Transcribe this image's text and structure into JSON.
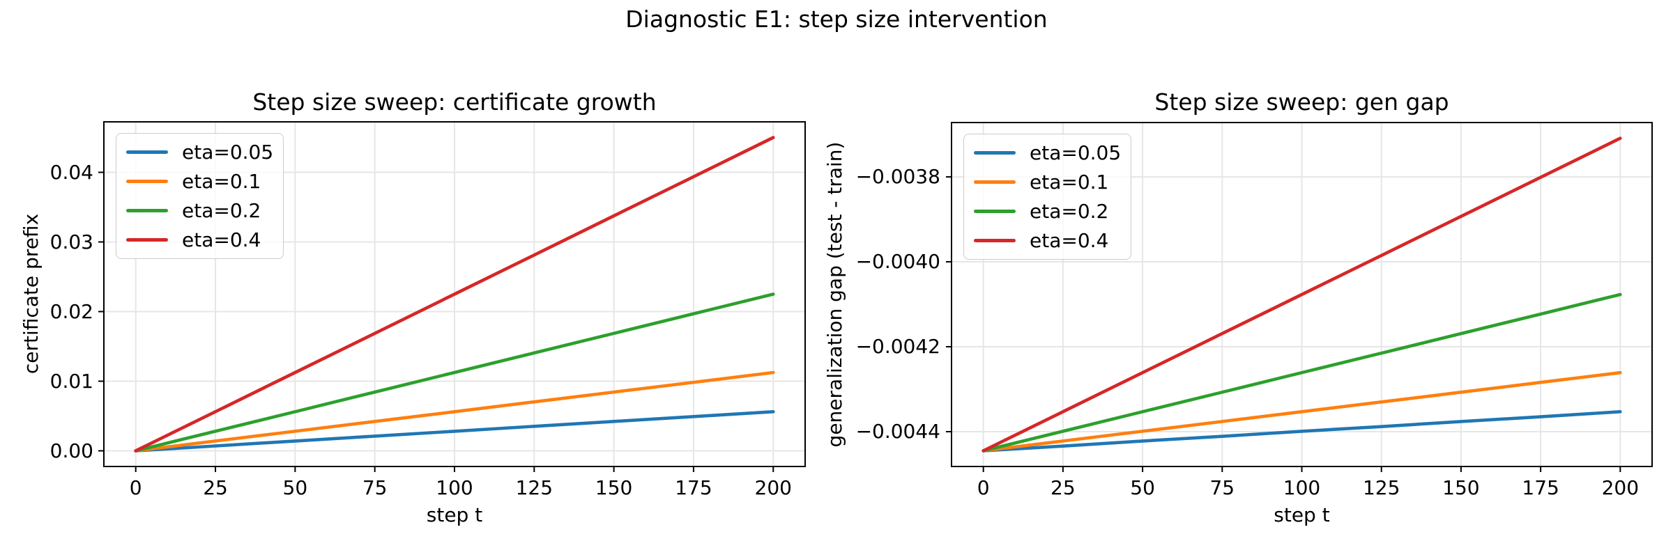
{
  "figure": {
    "suptitle": "Diagnostic E1: step size intervention",
    "background_color": "#ffffff",
    "text_color": "#000000",
    "grid_color": "#e6e6e6",
    "spine_color": "#000000"
  },
  "chart_data": [
    {
      "type": "line",
      "title": "Step size sweep: certificate growth",
      "xlabel": "step t",
      "ylabel": "certificate prefix",
      "grid": true,
      "legend_position": "upper left",
      "xlim": [
        -10,
        210
      ],
      "ylim": [
        -0.00225,
        0.04725
      ],
      "xticks": [
        0,
        25,
        50,
        75,
        100,
        125,
        150,
        175,
        200
      ],
      "xtick_labels": [
        "0",
        "25",
        "50",
        "75",
        "100",
        "125",
        "150",
        "175",
        "200"
      ],
      "yticks": [
        0.0,
        0.01,
        0.02,
        0.03,
        0.04
      ],
      "ytick_labels": [
        "0.00",
        "0.01",
        "0.02",
        "0.03",
        "0.04"
      ],
      "x": [
        0,
        25,
        50,
        75,
        100,
        125,
        150,
        175,
        200
      ],
      "series": [
        {
          "name": "eta=0.05",
          "color": "#1f77b4",
          "values": [
            0.0,
            0.000703,
            0.001406,
            0.002109,
            0.002813,
            0.003516,
            0.004219,
            0.004922,
            0.005625
          ]
        },
        {
          "name": "eta=0.1",
          "color": "#ff7f0e",
          "values": [
            0.0,
            0.001406,
            0.002813,
            0.004219,
            0.005625,
            0.007031,
            0.008438,
            0.009844,
            0.01125
          ]
        },
        {
          "name": "eta=0.2",
          "color": "#2ca02c",
          "values": [
            0.0,
            0.002813,
            0.005625,
            0.008438,
            0.01125,
            0.014063,
            0.016875,
            0.019688,
            0.0225
          ]
        },
        {
          "name": "eta=0.4",
          "color": "#d62728",
          "values": [
            0.0,
            0.005625,
            0.01125,
            0.016875,
            0.0225,
            0.028125,
            0.03375,
            0.039375,
            0.045
          ]
        }
      ]
    },
    {
      "type": "line",
      "title": "Step size sweep: gen gap",
      "xlabel": "step t",
      "ylabel": "generalization gap (test - train)",
      "grid": true,
      "legend_position": "upper left",
      "xlim": [
        -10,
        210
      ],
      "ylim": [
        -0.004482,
        -0.003672
      ],
      "xticks": [
        0,
        25,
        50,
        75,
        100,
        125,
        150,
        175,
        200
      ],
      "xtick_labels": [
        "0",
        "25",
        "50",
        "75",
        "100",
        "125",
        "150",
        "175",
        "200"
      ],
      "yticks": [
        -0.0044,
        -0.0042,
        -0.004,
        -0.0038
      ],
      "ytick_labels": [
        "−0.0044",
        "−0.0042",
        "−0.0040",
        "−0.0038"
      ],
      "x": [
        0,
        25,
        50,
        75,
        100,
        125,
        150,
        175,
        200
      ],
      "series": [
        {
          "name": "eta=0.05",
          "color": "#1f77b4",
          "values": [
            -0.004445,
            -0.004434,
            -0.004422,
            -0.004411,
            -0.004399,
            -0.004388,
            -0.004376,
            -0.004365,
            -0.004353
          ]
        },
        {
          "name": "eta=0.1",
          "color": "#ff7f0e",
          "values": [
            -0.004445,
            -0.004422,
            -0.004399,
            -0.004376,
            -0.004353,
            -0.00433,
            -0.004307,
            -0.004284,
            -0.004261
          ]
        },
        {
          "name": "eta=0.2",
          "color": "#2ca02c",
          "values": [
            -0.004445,
            -0.004399,
            -0.004353,
            -0.004307,
            -0.004261,
            -0.004215,
            -0.004169,
            -0.004123,
            -0.004077
          ]
        },
        {
          "name": "eta=0.4",
          "color": "#d62728",
          "values": [
            -0.004445,
            -0.004353,
            -0.004261,
            -0.004169,
            -0.004077,
            -0.003985,
            -0.003893,
            -0.003801,
            -0.003709
          ]
        }
      ]
    }
  ]
}
